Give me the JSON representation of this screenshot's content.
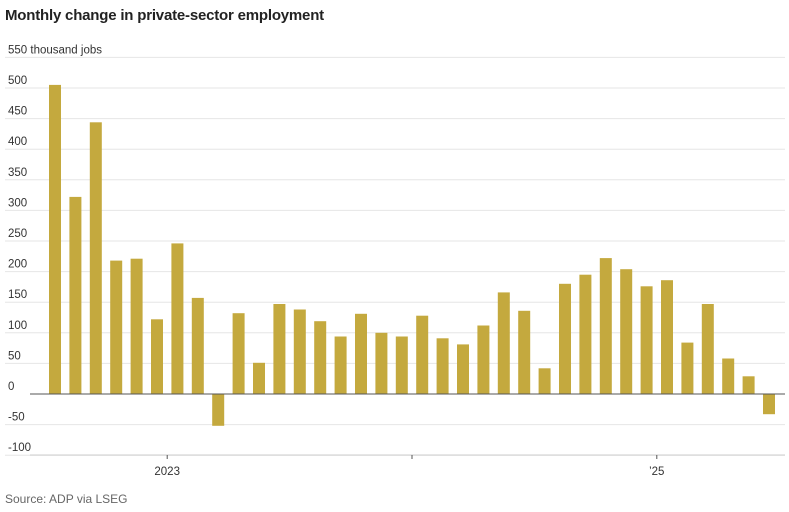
{
  "title": "Monthly change in private-sector employment",
  "source": "Source: ADP via LSEG",
  "colors": {
    "bar": "#c4a93e",
    "grid": "#e6e6e6",
    "zero": "#555555"
  },
  "chart_data": {
    "type": "bar",
    "title": "Monthly change in private-sector employment",
    "ylabel": "550 thousand jobs",
    "ylim": [
      -100,
      550
    ],
    "yticks": [
      -100,
      -50,
      0,
      50,
      100,
      150,
      200,
      250,
      300,
      350,
      400,
      450,
      500,
      550
    ],
    "ytick_labels": [
      "-100",
      "-50",
      "0",
      "50",
      "100",
      "150",
      "200",
      "250",
      "300",
      "350",
      "400",
      "450",
      "500",
      "550 thousand jobs"
    ],
    "xtick_labels": [
      {
        "index": 6,
        "label": "2023"
      },
      {
        "index": 18,
        "label": ""
      },
      {
        "index": 30,
        "label": "’25"
      }
    ],
    "grid": true,
    "values": [
      505,
      322,
      444,
      218,
      221,
      122,
      246,
      157,
      -52,
      132,
      51,
      147,
      138,
      119,
      94,
      131,
      100,
      94,
      128,
      91,
      81,
      112,
      166,
      136,
      42,
      180,
      195,
      222,
      204,
      176,
      186,
      84,
      147,
      58,
      29,
      -33
    ]
  }
}
